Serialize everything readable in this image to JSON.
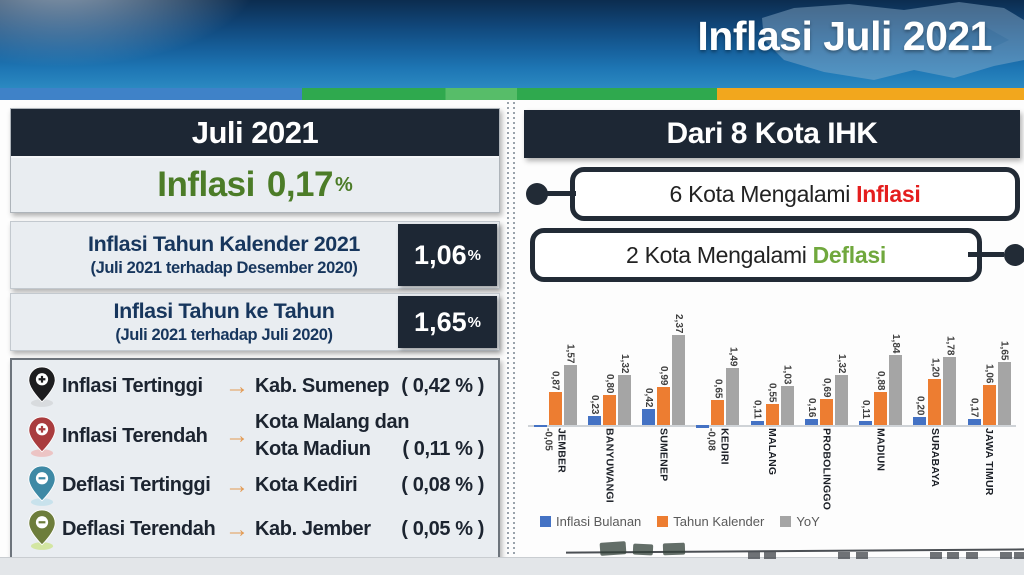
{
  "header": {
    "title": "Inflasi Juli 2021"
  },
  "left": {
    "month_label": "Juli 2021",
    "headline": {
      "prefix": "Inflasi",
      "value": "0,17",
      "unit": "%",
      "color": "#4c7c28"
    },
    "metric_rows": [
      {
        "title": "Inflasi Tahun Kalender 2021",
        "subtitle": "(Juli 2021 terhadap Desember 2020)",
        "value": "1,06",
        "unit": "%"
      },
      {
        "title": "Inflasi Tahun ke Tahun",
        "subtitle": "(Juli 2021 terhadap Juli 2020)",
        "value": "1,65",
        "unit": "%"
      }
    ],
    "extremes": [
      {
        "pin": "pin-plus-black",
        "pin_color": "#1d1d1f",
        "pin_shadow": "#d8dbde",
        "sign": "+",
        "label": "Inflasi Tertinggi",
        "arrow": "→",
        "lines": [
          {
            "text": "Kab. Sumenep",
            "value": "( 0,42 % )"
          }
        ]
      },
      {
        "pin": "pin-plus-red",
        "pin_color": "#a93c3e",
        "pin_shadow": "#ecc4c4",
        "sign": "+",
        "label": "Inflasi Terendah",
        "arrow": "→",
        "lines": [
          {
            "text": "Kota Malang dan"
          },
          {
            "text": "Kota Madiun",
            "value": "( 0,11 % )"
          }
        ]
      },
      {
        "pin": "pin-minus-teal",
        "pin_color": "#3e89a5",
        "pin_shadow": "#c8e2ec",
        "sign": "-",
        "label": "Deflasi Tertinggi",
        "arrow": "→",
        "lines": [
          {
            "text": "Kota Kediri",
            "value": "( 0,08 % )"
          }
        ]
      },
      {
        "pin": "pin-minus-green",
        "pin_color": "#6d7d3b",
        "pin_shadow": "#d3e6a2",
        "sign": "-",
        "label": "Deflasi Terendah",
        "arrow": "→",
        "lines": [
          {
            "text": "Kab. Jember",
            "value": "( 0,05 % )"
          }
        ]
      }
    ]
  },
  "right": {
    "title": "Dari 8 Kota IHK",
    "callouts": [
      {
        "text": "6 Kota Mengalami",
        "highlight": "Inflasi",
        "highlight_color": "#e41e1e",
        "connector": "left"
      },
      {
        "text": "2 Kota Mengalami",
        "highlight": "Deflasi",
        "highlight_color": "#70a83d",
        "connector": "right"
      }
    ]
  },
  "chart_data": {
    "type": "bar",
    "title": "",
    "xlabel": "",
    "ylabel": "",
    "ylim": [
      -0.1,
      2.5
    ],
    "grid": false,
    "legend_position": "bottom",
    "categories": [
      "JEMBER",
      "BANYUWANGI",
      "SUMENEP",
      "KEDIRI",
      "MALANG",
      "PROBOLINGGO",
      "MADIUN",
      "SURABAYA",
      "JAWA TIMUR"
    ],
    "series": [
      {
        "name": "Inflasi Bulanan",
        "color": "#4472c4",
        "values": [
          -0.05,
          0.23,
          0.42,
          -0.08,
          0.11,
          0.16,
          0.11,
          0.2,
          0.17
        ],
        "labels": [
          "-0,05",
          "0,23",
          "0,42",
          "-0,08",
          "0,11",
          "0,16",
          "0,11",
          "0,20",
          "0,17"
        ]
      },
      {
        "name": "Tahun Kalender",
        "color": "#ed7d31",
        "values": [
          0.87,
          0.8,
          0.99,
          0.65,
          0.55,
          0.69,
          0.88,
          1.2,
          1.06
        ],
        "labels": [
          "0,87",
          "0,80",
          "0,99",
          "0,65",
          "0,55",
          "0,69",
          "0,88",
          "1,20",
          "1,06"
        ]
      },
      {
        "name": "YoY",
        "color": "#a5a5a5",
        "values": [
          1.57,
          1.32,
          2.37,
          1.49,
          1.03,
          1.32,
          1.84,
          1.78,
          1.65
        ],
        "labels": [
          "1,57",
          "1,32",
          "2,37",
          "1,49",
          "1,03",
          "1,32",
          "1,84",
          "1,78",
          "1,65"
        ]
      }
    ]
  }
}
